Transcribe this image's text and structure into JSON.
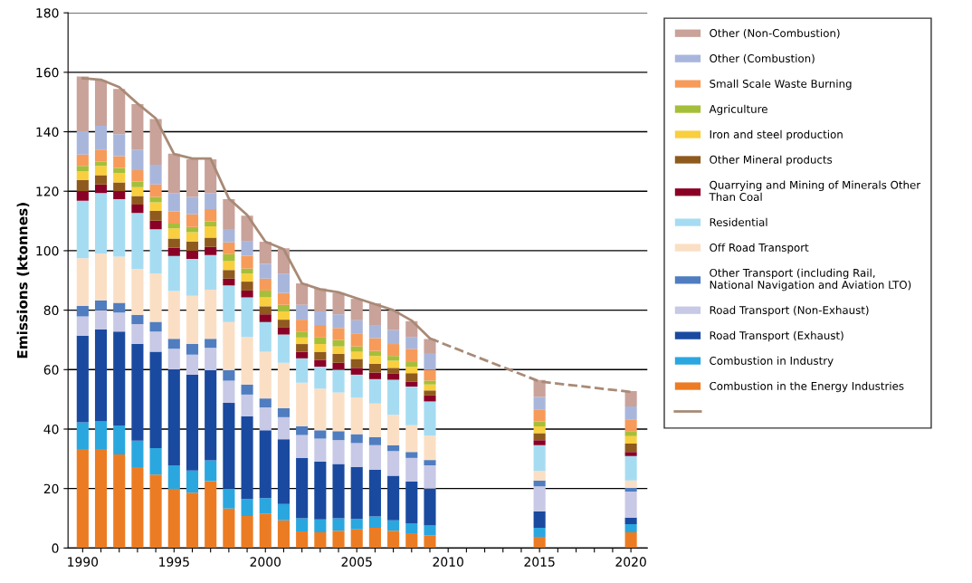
{
  "chart_data": {
    "type": "bar",
    "stacked": true,
    "ylabel": "Emissions (ktonnes)",
    "x": [
      1990,
      1991,
      1992,
      1993,
      1994,
      1995,
      1996,
      1997,
      1998,
      1999,
      2000,
      2001,
      2002,
      2003,
      2004,
      2005,
      2006,
      2007,
      2008,
      2009,
      2015,
      2020
    ],
    "xlim": [
      1989.2,
      2020.9
    ],
    "xticks": [
      1990,
      {
        "value": 1991,
        "label": null
      },
      {
        "value": 1992,
        "label": null
      },
      {
        "value": 1993,
        "label": null
      },
      {
        "value": 1994,
        "label": null
      },
      1995,
      {
        "value": 1996,
        "label": null
      },
      {
        "value": 1997,
        "label": null
      },
      {
        "value": 1998,
        "label": null
      },
      {
        "value": 1999,
        "label": null
      },
      2000,
      {
        "value": 2001,
        "label": null
      },
      {
        "value": 2002,
        "label": null
      },
      {
        "value": 2003,
        "label": null
      },
      {
        "value": 2004,
        "label": null
      },
      2005,
      {
        "value": 2006,
        "label": null
      },
      {
        "value": 2007,
        "label": null
      },
      {
        "value": 2008,
        "label": null
      },
      {
        "value": 2009,
        "label": null
      },
      2010,
      {
        "value": 2011,
        "label": null
      },
      {
        "value": 2012,
        "label": null
      },
      {
        "value": 2013,
        "label": null
      },
      {
        "value": 2014,
        "label": null
      },
      2015,
      {
        "value": 2016,
        "label": null
      },
      {
        "value": 2017,
        "label": null
      },
      {
        "value": 2018,
        "label": null
      },
      {
        "value": 2019,
        "label": null
      },
      2020
    ],
    "ylim": [
      0,
      180
    ],
    "yticks": [
      0,
      20,
      40,
      60,
      80,
      100,
      120,
      140,
      160,
      180
    ],
    "grid": "y",
    "legend": "right",
    "series": [
      {
        "name": "Combustion in the Energy Industries",
        "color": "#ec7c23",
        "values": [
          33.3,
          33.3,
          31.5,
          27.2,
          24.7,
          19.9,
          18.6,
          22.5,
          13.3,
          10.8,
          11.6,
          9.3,
          5.6,
          5.3,
          5.8,
          6.3,
          6.8,
          5.8,
          5.0,
          4.3,
          3.8,
          5.3
        ]
      },
      {
        "name": "Combustion in Industry",
        "color": "#2aa7df",
        "values": [
          9.0,
          9.3,
          9.7,
          8.9,
          8.9,
          7.9,
          7.5,
          7.0,
          6.7,
          5.7,
          5.2,
          5.5,
          4.4,
          4.3,
          4.2,
          3.5,
          3.8,
          3.5,
          3.3,
          3.3,
          3.0,
          2.7
        ]
      },
      {
        "name": "Road Transport (Exhaust)",
        "color": "#1a4aa0",
        "values": [
          29.1,
          30.9,
          31.6,
          32.6,
          32.4,
          32.3,
          32.2,
          30.3,
          28.8,
          27.8,
          22.8,
          21.8,
          20.3,
          19.4,
          18.3,
          17.5,
          15.7,
          15.0,
          14.0,
          12.4,
          5.6,
          2.2
        ]
      },
      {
        "name": "Road Transport (Non-Exhaust)",
        "color": "#c7c9e6",
        "values": [
          6.5,
          6.5,
          6.4,
          6.6,
          6.8,
          6.9,
          6.7,
          7.5,
          7.5,
          7.3,
          7.7,
          7.4,
          7.7,
          7.8,
          8.0,
          8.0,
          8.3,
          8.3,
          8.0,
          7.8,
          8.3,
          8.8
        ]
      },
      {
        "name": "Other Transport (including Rail, National Navigation and Aviation LTO)",
        "color": "#4f7dc0",
        "values": [
          3.5,
          3.3,
          3.3,
          3.1,
          3.3,
          3.4,
          3.7,
          3.1,
          3.5,
          3.4,
          3.0,
          3.0,
          3.0,
          2.8,
          3.0,
          3.0,
          2.7,
          2.0,
          2.0,
          1.8,
          2.0,
          1.2
        ]
      },
      {
        "name": "Off Road Transport",
        "color": "#fbdfc4",
        "values": [
          16.1,
          15.7,
          15.5,
          15.4,
          16.3,
          16.0,
          16.1,
          16.5,
          16.2,
          16.0,
          15.7,
          15.3,
          14.6,
          14.0,
          13.0,
          12.3,
          11.3,
          10.2,
          9.0,
          8.2,
          3.3,
          2.5
        ]
      },
      {
        "name": "Residential",
        "color": "#a6dcf2",
        "values": [
          19.3,
          20.4,
          19.3,
          18.9,
          14.8,
          11.8,
          12.4,
          11.6,
          12.3,
          13.3,
          10.0,
          9.5,
          8.2,
          7.4,
          7.7,
          7.7,
          8.2,
          11.8,
          13.0,
          11.5,
          8.6,
          8.2
        ]
      },
      {
        "name": "Quarrying and Mining of Minerals Other Than Coal",
        "color": "#8b0026",
        "values": [
          3.2,
          2.9,
          2.7,
          2.8,
          2.9,
          2.8,
          2.8,
          2.8,
          2.3,
          2.3,
          2.6,
          2.5,
          2.2,
          2.3,
          2.3,
          2.3,
          2.2,
          2.0,
          1.7,
          2.0,
          1.7,
          1.4
        ]
      },
      {
        "name": "Other Mineral products",
        "color": "#8f5a1e",
        "values": [
          3.7,
          3.1,
          3.0,
          2.9,
          3.3,
          3.1,
          3.1,
          3.1,
          2.9,
          3.0,
          2.7,
          2.5,
          2.6,
          2.7,
          3.0,
          3.0,
          3.0,
          2.0,
          2.8,
          1.7,
          2.3,
          2.8
        ]
      },
      {
        "name": "Iron and steel production",
        "color": "#f9cf3f",
        "values": [
          3.1,
          3.1,
          3.1,
          3.0,
          2.9,
          3.4,
          3.1,
          3.8,
          3.0,
          2.7,
          3.0,
          2.8,
          2.2,
          2.6,
          2.5,
          2.4,
          2.6,
          2.4,
          2.2,
          2.0,
          2.3,
          2.5
        ]
      },
      {
        "name": "Agriculture",
        "color": "#a6bf3a",
        "values": [
          1.7,
          1.4,
          1.7,
          1.9,
          1.8,
          1.6,
          1.8,
          1.7,
          2.3,
          1.7,
          2.3,
          2.2,
          2.0,
          2.2,
          2.2,
          1.8,
          1.7,
          1.6,
          1.8,
          1.3,
          1.7,
          1.7
        ]
      },
      {
        "name": "Small Scale Waste Burning",
        "color": "#f79b5a",
        "values": [
          3.8,
          4.1,
          4.0,
          3.8,
          4.2,
          4.1,
          4.2,
          4.1,
          4.0,
          4.3,
          4.0,
          4.0,
          4.0,
          4.2,
          4.0,
          4.2,
          4.3,
          4.0,
          4.2,
          3.7,
          4.0,
          4.0
        ]
      },
      {
        "name": "Other (Combustion)",
        "color": "#a9b6dc",
        "values": [
          7.9,
          8.0,
          7.4,
          6.9,
          6.6,
          6.2,
          5.9,
          5.4,
          4.5,
          5.0,
          5.0,
          6.5,
          5.0,
          4.6,
          4.6,
          4.6,
          4.4,
          4.7,
          4.0,
          5.3,
          4.2,
          4.3
        ]
      },
      {
        "name": "Other (Non-Combustion)",
        "color": "#c9a29a",
        "values": [
          18.4,
          15.3,
          15.2,
          15.3,
          15.4,
          13.2,
          12.6,
          11.3,
          10.0,
          8.5,
          7.4,
          8.5,
          7.2,
          7.7,
          7.2,
          7.2,
          7.3,
          6.5,
          5.3,
          5.0,
          5.7,
          5.2
        ]
      },
      {
        "type": "line",
        "color": "#a88a76",
        "line_style": "solid",
        "x": [
          1990,
          1991,
          1992,
          1993,
          1994,
          1995,
          1996,
          1997,
          1998,
          1999,
          2000,
          2001,
          2002,
          2003,
          2004,
          2005,
          2006,
          2007,
          2008,
          2009
        ],
        "values": [
          158,
          157.5,
          155,
          149.5,
          144.5,
          132.5,
          131,
          131,
          117.5,
          112,
          103,
          100.5,
          89,
          87,
          86,
          84,
          82,
          80,
          76.5,
          70.5
        ]
      },
      {
        "type": "line",
        "color": "#a88a76",
        "line_style": "dashed",
        "x": [
          2009,
          2015,
          2020
        ],
        "values": [
          70.5,
          56,
          52.5
        ]
      }
    ]
  }
}
